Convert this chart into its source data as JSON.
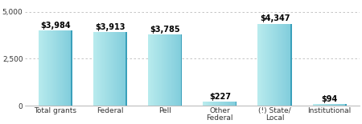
{
  "categories": [
    "Total grants",
    "Federal",
    "Pell",
    "Other\nFederal",
    "(!) State/\nLocal",
    "Institutional"
  ],
  "values": [
    3984,
    3913,
    3785,
    227,
    4347,
    94
  ],
  "labels": [
    "$3,984",
    "$3,913",
    "$3,785",
    "$227",
    "$4,347",
    "$94"
  ],
  "ylim": [
    0,
    5000
  ],
  "yticks": [
    0,
    2500,
    5000
  ],
  "ytick_labels": [
    "0",
    "2,500",
    "5,000"
  ],
  "bar_color_left": "#a8e8ee",
  "bar_color_right": "#5bbdcf",
  "background_color": "#ffffff",
  "grid_color": "#bbbbbb",
  "label_fontsize": 7.0,
  "tick_fontsize": 6.5
}
